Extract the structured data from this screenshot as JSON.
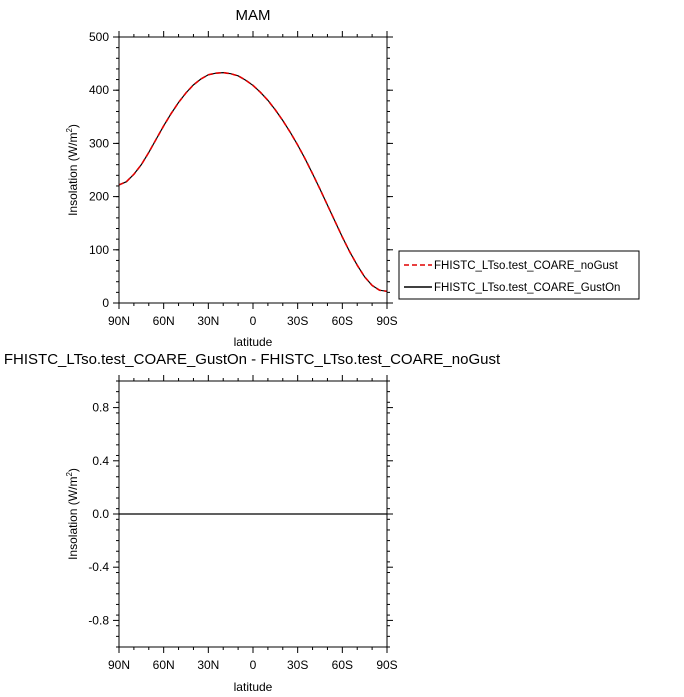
{
  "colors": {
    "background": "#ffffff",
    "axis": "#000000",
    "noGust": "#e00000",
    "gustOn": "#000000"
  },
  "chart_data": [
    {
      "type": "line",
      "title": "MAM",
      "xlabel": "latitude",
      "ylabel": "Insolation (W/m",
      "ylabel_sup": "2",
      "ylabel_end": ")",
      "xlim": [
        90,
        -90
      ],
      "ylim": [
        0,
        500
      ],
      "x_ticks": [
        90,
        60,
        30,
        0,
        -30,
        -60,
        -90
      ],
      "x_ticklabels": [
        "90N",
        "60N",
        "30N",
        "0",
        "30S",
        "60S",
        "90S"
      ],
      "y_ticks": [
        0,
        100,
        200,
        300,
        400,
        500
      ],
      "y_ticklabels": [
        "0",
        "100",
        "200",
        "300",
        "400",
        "500"
      ],
      "grid": false,
      "legend_position": "right",
      "x": [
        90,
        85,
        80,
        75,
        70,
        65,
        60,
        55,
        50,
        45,
        40,
        35,
        30,
        25,
        20,
        15,
        10,
        5,
        0,
        -5,
        -10,
        -15,
        -20,
        -25,
        -30,
        -35,
        -40,
        -45,
        -50,
        -55,
        -60,
        -65,
        -70,
        -75,
        -80,
        -85,
        -90
      ],
      "series": [
        {
          "name": "FHISTC_LTso.test_COARE_noGust",
          "style": "dashed",
          "values": [
            222,
            228,
            242,
            260,
            283,
            308,
            333,
            356,
            377,
            395,
            410,
            421,
            429,
            432,
            433,
            431,
            427,
            419,
            409,
            396,
            381,
            363,
            343,
            321,
            297,
            271,
            243,
            214,
            184,
            154,
            124,
            96,
            71,
            49,
            33,
            24,
            22
          ]
        },
        {
          "name": "FHISTC_LTso.test_COARE_GustOn",
          "style": "solid",
          "values": [
            222,
            228,
            242,
            260,
            283,
            308,
            333,
            356,
            377,
            395,
            410,
            421,
            429,
            432,
            433,
            431,
            427,
            419,
            409,
            396,
            381,
            363,
            343,
            321,
            297,
            271,
            243,
            214,
            184,
            154,
            124,
            96,
            71,
            49,
            33,
            24,
            22
          ]
        }
      ]
    },
    {
      "type": "line",
      "title": "FHISTC_LTso.test_COARE_GustOn - FHISTC_LTso.test_COARE_noGust",
      "xlabel": "latitude",
      "ylabel": "Insolation (W/m",
      "ylabel_sup": "2",
      "ylabel_end": ")",
      "xlim": [
        90,
        -90
      ],
      "ylim": [
        -1,
        1
      ],
      "x_ticks": [
        90,
        60,
        30,
        0,
        -30,
        -60,
        -90
      ],
      "x_ticklabels": [
        "90N",
        "60N",
        "30N",
        "0",
        "30S",
        "60S",
        "90S"
      ],
      "y_ticks": [
        -0.8,
        -0.4,
        0.0,
        0.4,
        0.8
      ],
      "y_ticklabels": [
        "-0.8",
        "-0.4",
        "0.0",
        "0.4",
        "0.8"
      ],
      "grid": false,
      "x": [
        90,
        -90
      ],
      "series": [
        {
          "style": "solid",
          "values": [
            0,
            0
          ]
        }
      ]
    }
  ]
}
